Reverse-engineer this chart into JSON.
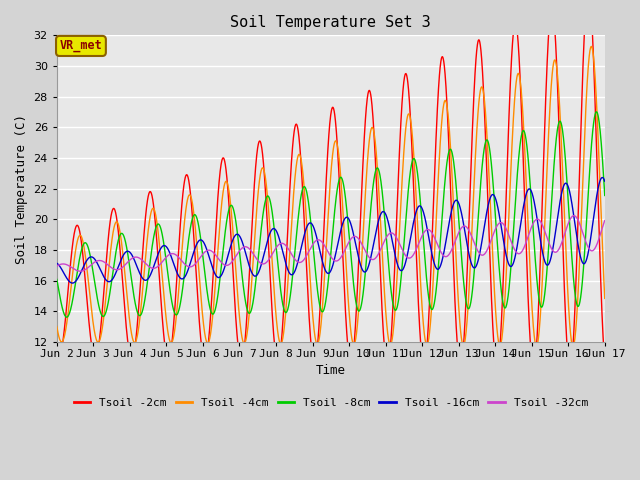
{
  "title": "Soil Temperature Set 3",
  "xlabel": "Time",
  "ylabel": "Soil Temperature (C)",
  "ylim": [
    12,
    32
  ],
  "xlim": [
    0,
    15
  ],
  "fig_bg": "#d4d4d4",
  "plot_bg": "#e8e8e8",
  "grid_color": "#ffffff",
  "series_names": [
    "Tsoil -2cm",
    "Tsoil -4cm",
    "Tsoil -8cm",
    "Tsoil -16cm",
    "Tsoil -32cm"
  ],
  "series_colors": [
    "#ff0000",
    "#ff8c00",
    "#00cc00",
    "#0000cc",
    "#cc44cc"
  ],
  "tick_labels": [
    "Jun 2",
    "Jun 3",
    "Jun 4",
    "Jun 5",
    "Jun 6",
    "Jun 7",
    "Jun 8",
    "Jun 9",
    "Jun 10",
    "Jun 11",
    "Jun 12",
    "Jun 13",
    "Jun 14",
    "Jun 15",
    "Jun 16",
    "Jun 17"
  ],
  "annotation_text": "VR_met",
  "annotation_color": "#8b0000",
  "annotation_bg": "#e8e800",
  "annotation_border": "#8b6000"
}
